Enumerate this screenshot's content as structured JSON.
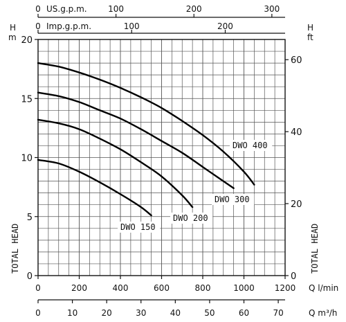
{
  "chart_data": {
    "type": "line",
    "x_unit": "Q l/min",
    "xlim": [
      0,
      1200
    ],
    "ylim_m": [
      0,
      20
    ],
    "ylim_ft": [
      0,
      65
    ],
    "y_left_unit_top": "H",
    "y_left_unit_bottom": "m",
    "y_right_unit_top": "H",
    "y_right_unit_bottom": "ft",
    "y_left_title": "TOTAL HEAD",
    "y_right_title": "TOTAL HEAD",
    "x_ticks_lmin": [
      0,
      200,
      400,
      600,
      800,
      1000,
      1200
    ],
    "x_ticks_m3h": [
      0,
      10,
      20,
      30,
      40,
      50,
      60,
      70
    ],
    "x_m3h_label": "Q m³/h",
    "x_lmin_label": "Q l/min",
    "y_ticks_m": [
      0,
      5,
      10,
      15,
      20
    ],
    "y_ticks_ft": [
      0,
      20,
      40,
      60
    ],
    "top_axis_us": {
      "label": "US.g.p.m.",
      "ticks": [
        0,
        100,
        200,
        300
      ]
    },
    "top_axis_imp": {
      "label": "Imp.g.p.m.",
      "ticks": [
        0,
        100,
        200
      ]
    },
    "series": [
      {
        "name": "DWO 150",
        "x": [
          0,
          100,
          200,
          300,
          400,
          500,
          550
        ],
        "y": [
          9.8,
          9.5,
          8.8,
          7.9,
          6.9,
          5.8,
          5.1
        ]
      },
      {
        "name": "DWO 200",
        "x": [
          0,
          100,
          200,
          300,
          400,
          500,
          600,
          700,
          750
        ],
        "y": [
          13.2,
          12.9,
          12.4,
          11.6,
          10.7,
          9.6,
          8.4,
          6.8,
          5.8
        ]
      },
      {
        "name": "DWO 300",
        "x": [
          0,
          100,
          200,
          300,
          400,
          500,
          600,
          700,
          800,
          900,
          950
        ],
        "y": [
          15.5,
          15.2,
          14.7,
          14.0,
          13.3,
          12.4,
          11.4,
          10.4,
          9.2,
          8.0,
          7.4
        ]
      },
      {
        "name": "DWO 400",
        "x": [
          0,
          100,
          200,
          300,
          400,
          500,
          600,
          700,
          800,
          900,
          1000,
          1050
        ],
        "y": [
          18.0,
          17.7,
          17.2,
          16.6,
          15.9,
          15.1,
          14.2,
          13.1,
          11.9,
          10.5,
          8.8,
          7.7
        ]
      }
    ]
  }
}
